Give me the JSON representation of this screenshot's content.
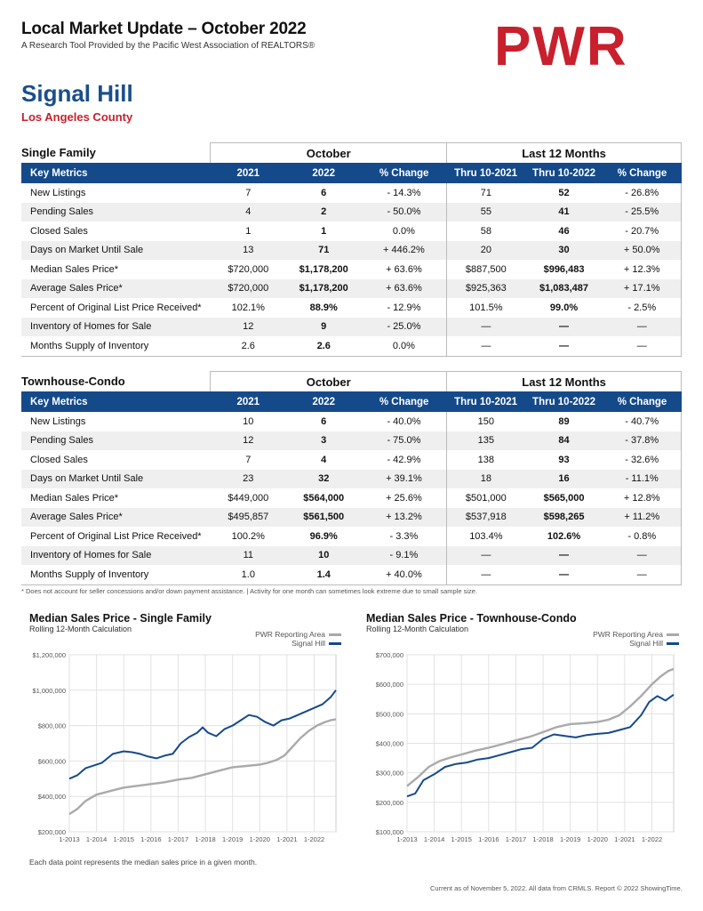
{
  "header": {
    "title": "Local Market Update – October 2022",
    "subtitle": "A Research Tool Provided by the Pacific West Association of REALTORS®",
    "logo": "PWR",
    "area": "Signal Hill",
    "county": "Los Angeles County"
  },
  "columns": {
    "key_metrics": "Key Metrics",
    "october": "October",
    "last12": "Last 12 Months",
    "y2021": "2021",
    "y2022": "2022",
    "pct_change": "% Change",
    "thru2021": "Thru 10-2021",
    "thru2022": "Thru 10-2022"
  },
  "single_family": {
    "title": "Single Family",
    "rows": [
      [
        "New Listings",
        "7",
        "6",
        "- 14.3%",
        "71",
        "52",
        "- 26.8%"
      ],
      [
        "Pending Sales",
        "4",
        "2",
        "- 50.0%",
        "55",
        "41",
        "- 25.5%"
      ],
      [
        "Closed Sales",
        "1",
        "1",
        "0.0%",
        "58",
        "46",
        "- 20.7%"
      ],
      [
        "Days on Market Until Sale",
        "13",
        "71",
        "+ 446.2%",
        "20",
        "30",
        "+ 50.0%"
      ],
      [
        "Median Sales Price*",
        "$720,000",
        "$1,178,200",
        "+ 63.6%",
        "$887,500",
        "$996,483",
        "+ 12.3%"
      ],
      [
        "Average Sales Price*",
        "$720,000",
        "$1,178,200",
        "+ 63.6%",
        "$925,363",
        "$1,083,487",
        "+ 17.1%"
      ],
      [
        "Percent of Original List Price Received*",
        "102.1%",
        "88.9%",
        "- 12.9%",
        "101.5%",
        "99.0%",
        "- 2.5%"
      ],
      [
        "Inventory of Homes for Sale",
        "12",
        "9",
        "- 25.0%",
        "—",
        "—",
        "—"
      ],
      [
        "Months Supply of Inventory",
        "2.6",
        "2.6",
        "0.0%",
        "—",
        "—",
        "—"
      ]
    ]
  },
  "townhouse_condo": {
    "title": "Townhouse-Condo",
    "rows": [
      [
        "New Listings",
        "10",
        "6",
        "- 40.0%",
        "150",
        "89",
        "- 40.7%"
      ],
      [
        "Pending Sales",
        "12",
        "3",
        "- 75.0%",
        "135",
        "84",
        "- 37.8%"
      ],
      [
        "Closed Sales",
        "7",
        "4",
        "- 42.9%",
        "138",
        "93",
        "- 32.6%"
      ],
      [
        "Days on Market Until Sale",
        "23",
        "32",
        "+ 39.1%",
        "18",
        "16",
        "- 11.1%"
      ],
      [
        "Median Sales Price*",
        "$449,000",
        "$564,000",
        "+ 25.6%",
        "$501,000",
        "$565,000",
        "+ 12.8%"
      ],
      [
        "Average Sales Price*",
        "$495,857",
        "$561,500",
        "+ 13.2%",
        "$537,918",
        "$598,265",
        "+ 11.2%"
      ],
      [
        "Percent of Original List Price Received*",
        "100.2%",
        "96.9%",
        "- 3.3%",
        "103.4%",
        "102.6%",
        "- 0.8%"
      ],
      [
        "Inventory of Homes for Sale",
        "11",
        "10",
        "- 9.1%",
        "—",
        "—",
        "—"
      ],
      [
        "Months Supply of Inventory",
        "1.0",
        "1.4",
        "+ 40.0%",
        "—",
        "—",
        "—"
      ]
    ]
  },
  "footnote": "* Does not account for seller concessions and/or down payment assistance. | Activity for one month can sometimes look extreme due to small sample size.",
  "chart_data": [
    {
      "type": "line",
      "title": "Median Sales Price - Single Family",
      "subtitle": "Rolling 12-Month Calculation",
      "ylim": [
        200000,
        1200000
      ],
      "yticks": [
        200000,
        400000,
        600000,
        800000,
        1000000,
        1200000
      ],
      "ytick_labels": [
        "$200,000",
        "$400,000",
        "$600,000",
        "$800,000",
        "$1,000,000",
        "$1,200,000"
      ],
      "xlim": [
        2013.0,
        2022.8
      ],
      "xticks": [
        2013,
        2014,
        2015,
        2016,
        2017,
        2018,
        2019,
        2020,
        2021,
        2022
      ],
      "xtick_labels": [
        "1-2013",
        "1-2014",
        "1-2015",
        "1-2016",
        "1-2017",
        "1-2018",
        "1-2019",
        "1-2020",
        "1-2021",
        "1-2022"
      ],
      "grid": true,
      "legend": "top-right",
      "series": [
        {
          "name": "PWR Reporting Area",
          "color": "#aaaaaa",
          "x": [
            2013.0,
            2013.3,
            2013.6,
            2014.0,
            2014.5,
            2015.0,
            2015.5,
            2016.0,
            2016.5,
            2017.0,
            2017.5,
            2018.0,
            2018.5,
            2019.0,
            2019.5,
            2020.0,
            2020.3,
            2020.6,
            2020.9,
            2021.2,
            2021.5,
            2021.8,
            2022.1,
            2022.4,
            2022.6,
            2022.8
          ],
          "y": [
            300000,
            330000,
            375000,
            410000,
            430000,
            450000,
            460000,
            470000,
            480000,
            495000,
            505000,
            525000,
            545000,
            565000,
            572000,
            580000,
            590000,
            605000,
            630000,
            680000,
            730000,
            770000,
            800000,
            820000,
            830000,
            835000
          ]
        },
        {
          "name": "Signal Hill",
          "color": "#154a8a",
          "x": [
            2013.0,
            2013.3,
            2013.6,
            2013.9,
            2014.2,
            2014.6,
            2015.0,
            2015.3,
            2015.6,
            2015.9,
            2016.2,
            2016.5,
            2016.8,
            2017.1,
            2017.4,
            2017.7,
            2017.9,
            2018.1,
            2018.4,
            2018.7,
            2019.0,
            2019.3,
            2019.6,
            2019.9,
            2020.2,
            2020.5,
            2020.8,
            2021.1,
            2021.4,
            2021.7,
            2022.0,
            2022.3,
            2022.6,
            2022.8
          ],
          "y": [
            500000,
            520000,
            560000,
            575000,
            590000,
            640000,
            655000,
            650000,
            640000,
            625000,
            615000,
            630000,
            640000,
            700000,
            735000,
            760000,
            790000,
            760000,
            740000,
            780000,
            800000,
            830000,
            860000,
            850000,
            820000,
            800000,
            830000,
            840000,
            860000,
            880000,
            900000,
            920000,
            960000,
            1000000
          ]
        }
      ]
    },
    {
      "type": "line",
      "title": "Median Sales Price - Townhouse-Condo",
      "subtitle": "Rolling 12-Month Calculation",
      "ylim": [
        100000,
        700000
      ],
      "yticks": [
        100000,
        200000,
        300000,
        400000,
        500000,
        600000,
        700000
      ],
      "ytick_labels": [
        "$100,000",
        "$200,000",
        "$300,000",
        "$400,000",
        "$500,000",
        "$600,000",
        "$700,000"
      ],
      "xlim": [
        2013.0,
        2022.8
      ],
      "xticks": [
        2013,
        2014,
        2015,
        2016,
        2017,
        2018,
        2019,
        2020,
        2021,
        2022
      ],
      "xtick_labels": [
        "1-2013",
        "1-2014",
        "1-2015",
        "1-2016",
        "1-2017",
        "1-2018",
        "1-2019",
        "1-2020",
        "1-2021",
        "1-2022"
      ],
      "grid": true,
      "legend": "top-right",
      "series": [
        {
          "name": "PWR Reporting Area",
          "color": "#aaaaaa",
          "x": [
            2013.0,
            2013.4,
            2013.8,
            2014.2,
            2014.6,
            2015.0,
            2015.5,
            2016.0,
            2016.5,
            2017.0,
            2017.5,
            2018.0,
            2018.5,
            2019.0,
            2019.5,
            2020.0,
            2020.4,
            2020.8,
            2021.2,
            2021.6,
            2022.0,
            2022.3,
            2022.6,
            2022.8
          ],
          "y": [
            255000,
            285000,
            320000,
            340000,
            352000,
            362000,
            375000,
            385000,
            397000,
            410000,
            422000,
            438000,
            455000,
            465000,
            468000,
            472000,
            480000,
            495000,
            525000,
            560000,
            600000,
            625000,
            645000,
            652000
          ]
        },
        {
          "name": "Signal Hill",
          "color": "#154a8a",
          "x": [
            2013.0,
            2013.3,
            2013.6,
            2014.0,
            2014.4,
            2014.8,
            2015.2,
            2015.6,
            2016.0,
            2016.4,
            2016.8,
            2017.2,
            2017.6,
            2018.0,
            2018.4,
            2018.8,
            2019.2,
            2019.6,
            2020.0,
            2020.4,
            2020.8,
            2021.2,
            2021.6,
            2021.9,
            2022.2,
            2022.5,
            2022.8
          ],
          "y": [
            220000,
            230000,
            275000,
            295000,
            320000,
            330000,
            335000,
            345000,
            350000,
            360000,
            370000,
            380000,
            385000,
            415000,
            430000,
            425000,
            420000,
            428000,
            432000,
            435000,
            445000,
            455000,
            495000,
            540000,
            560000,
            545000,
            565000
          ]
        }
      ]
    }
  ],
  "chart_note": "Each data point represents the median sales price in a given month.",
  "report_footer": "Current as of November 5, 2022. All data from CRMLS. Report © 2022 ShowingTime."
}
